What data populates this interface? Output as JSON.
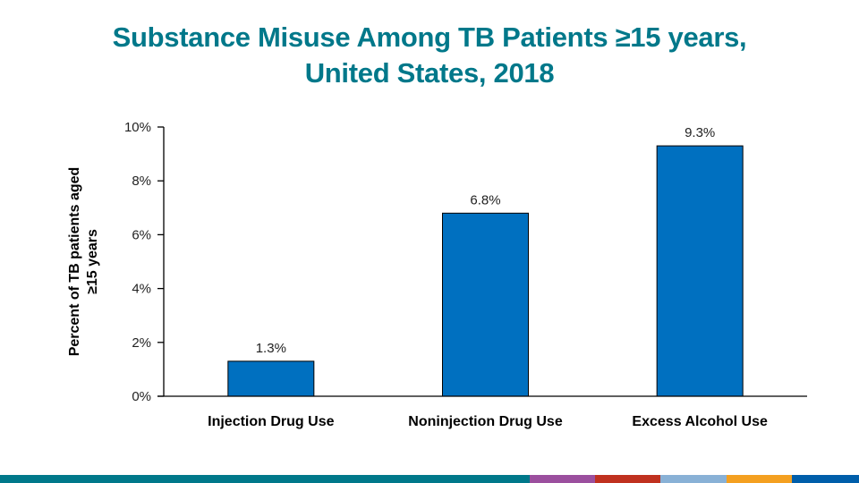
{
  "chart_data": {
    "type": "bar",
    "title_lines": [
      "Substance Misuse Among TB Patients ≥15 years,",
      "United States, 2018"
    ],
    "categories": [
      "Injection Drug Use",
      "Noninjection Drug Use",
      "Excess Alcohol Use"
    ],
    "values": [
      1.3,
      6.8,
      9.3
    ],
    "data_labels": [
      "1.3%",
      "6.8%",
      "9.3%"
    ],
    "xlabel": "",
    "ylabel_lines": [
      "Percent of TB patients aged",
      "≥15 years"
    ],
    "ylim": [
      0,
      10
    ],
    "yticks": [
      0,
      2,
      4,
      6,
      8,
      10
    ],
    "ytick_labels": [
      "0%",
      "2%",
      "4%",
      "6%",
      "8%",
      "10%"
    ],
    "grid": false,
    "legend": "none",
    "bar_color": "#0070c0",
    "bar_edge_color": "#000000"
  },
  "footer_stripe_colors": [
    "#00788a",
    "#9b4f9e",
    "#c0311f",
    "#89b1d6",
    "#f4a020",
    "#005eaa"
  ],
  "title_color": "#00788a"
}
